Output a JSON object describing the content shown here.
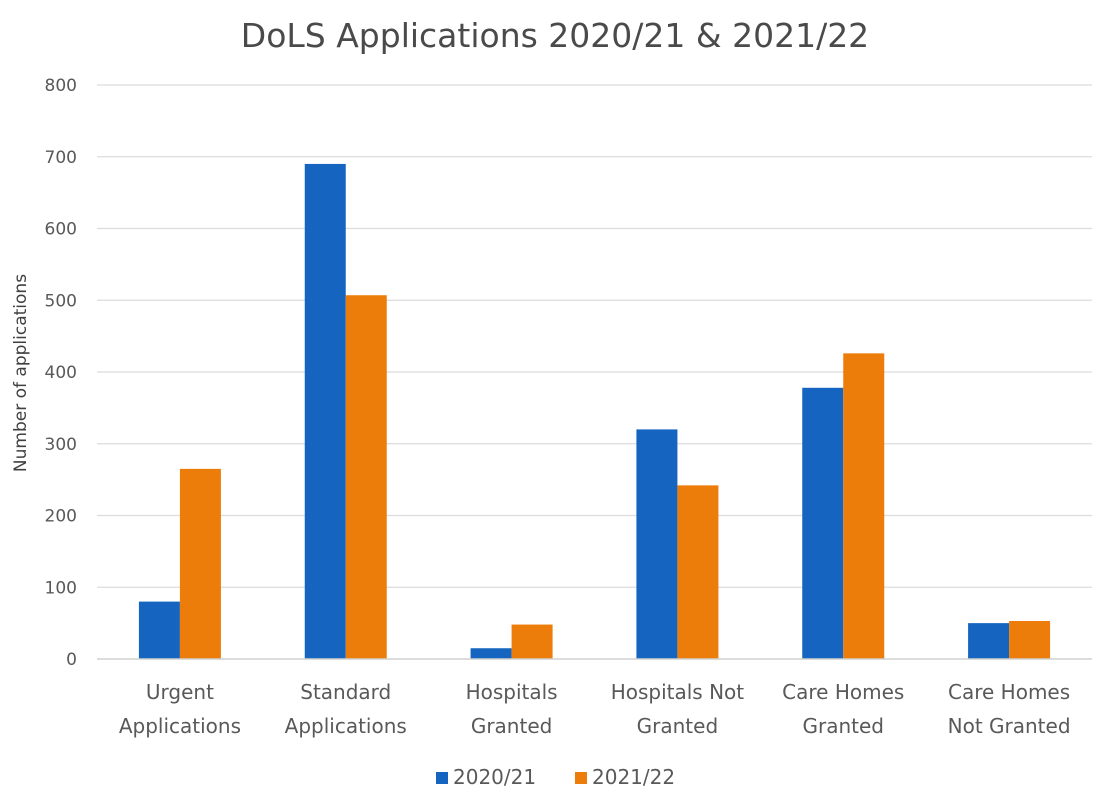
{
  "chart_data": {
    "type": "bar",
    "title": "DoLS Applications 2020/21 & 2021/22",
    "xlabel": "",
    "ylabel": "Number of applications",
    "ylim": [
      0,
      800
    ],
    "yticks": [
      0,
      100,
      200,
      300,
      400,
      500,
      600,
      700,
      800
    ],
    "grid": true,
    "legend_position": "bottom",
    "categories": [
      [
        "Urgent",
        "Applications"
      ],
      [
        "Standard",
        "Applications"
      ],
      [
        "Hospitals",
        "Granted"
      ],
      [
        "Hospitals Not",
        "Granted"
      ],
      [
        "Care Homes",
        "Granted"
      ],
      [
        "Care Homes",
        "Not Granted"
      ]
    ],
    "series": [
      {
        "name": "2020/21",
        "color": "#1565C0",
        "values": [
          80,
          690,
          15,
          320,
          378,
          50
        ]
      },
      {
        "name": "2021/22",
        "color": "#ED7D0A",
        "values": [
          265,
          507,
          48,
          242,
          426,
          53
        ]
      }
    ]
  }
}
